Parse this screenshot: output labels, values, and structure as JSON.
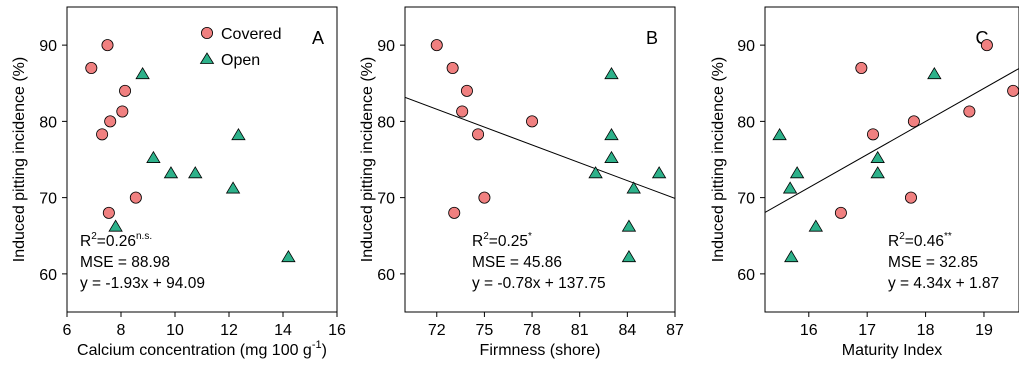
{
  "chart_data": [
    {
      "type": "scatter",
      "panel_letter": "A",
      "xlabel": "Calcium concentration (mg 100 g",
      "xlabel_sup": "-1",
      "xlabel_end": ")",
      "ylabel": "Induced pitting incidence (%)",
      "xlim": [
        6,
        16
      ],
      "ylim": [
        55,
        95
      ],
      "xticks": [
        6,
        8,
        10,
        12,
        14,
        16
      ],
      "yticks": [
        60,
        70,
        80,
        90
      ],
      "legend": {
        "position": "top-right",
        "entries": [
          {
            "name": "Covered"
          },
          {
            "name": "Open"
          }
        ]
      },
      "series": [
        {
          "name": "Covered",
          "marker": "circle",
          "color": "#f08080",
          "points": [
            [
              6.9,
              87
            ],
            [
              7.5,
              90
            ],
            [
              7.3,
              78.3
            ],
            [
              7.6,
              80
            ],
            [
              8.05,
              81.3
            ],
            [
              8.15,
              84
            ],
            [
              7.55,
              68
            ],
            [
              8.55,
              70
            ]
          ]
        },
        {
          "name": "Open",
          "marker": "triangle",
          "color": "#2db18a",
          "points": [
            [
              8.8,
              86.2
            ],
            [
              9.2,
              75.2
            ],
            [
              9.85,
              73.2
            ],
            [
              10.75,
              73.2
            ],
            [
              12.15,
              71.2
            ],
            [
              12.35,
              78.2
            ],
            [
              7.8,
              66.2
            ],
            [
              14.2,
              62.2
            ]
          ]
        }
      ],
      "fit_line": null,
      "annotations": {
        "r2_base": "R",
        "r2_sup": "2",
        "r2_value": "=0.26",
        "r2_sig": "n.s.",
        "mse": "MSE = 88.98",
        "equation": "y = -1.93x + 94.09"
      }
    },
    {
      "type": "scatter",
      "panel_letter": "B",
      "xlabel": "Firmness (shore)",
      "ylabel": "Induced pitting incidence (%)",
      "xlim": [
        70,
        87
      ],
      "ylim": [
        55,
        95
      ],
      "xticks": [
        72,
        75,
        78,
        81,
        84,
        87
      ],
      "yticks": [
        60,
        70,
        80,
        90
      ],
      "series": [
        {
          "name": "Covered",
          "marker": "circle",
          "color": "#f08080",
          "points": [
            [
              72,
              90
            ],
            [
              73,
              87
            ],
            [
              73.9,
              84
            ],
            [
              73.6,
              81.3
            ],
            [
              74.6,
              78.3
            ],
            [
              78,
              80
            ],
            [
              75,
              70
            ],
            [
              73.1,
              68
            ]
          ]
        },
        {
          "name": "Open",
          "marker": "triangle",
          "color": "#2db18a",
          "points": [
            [
              83,
              86.2
            ],
            [
              83,
              78.2
            ],
            [
              83,
              75.2
            ],
            [
              82,
              73.2
            ],
            [
              86,
              73.2
            ],
            [
              84.4,
              71.2
            ],
            [
              84.1,
              66.2
            ],
            [
              84.1,
              62.2
            ]
          ]
        }
      ],
      "fit_line": {
        "slope": -0.78,
        "intercept": 137.75,
        "x_range": [
          70,
          87
        ]
      },
      "annotations": {
        "r2_base": "R",
        "r2_sup": "2",
        "r2_value": "=0.25",
        "r2_sig": "*",
        "mse": "MSE = 45.86",
        "equation": "y = -0.78x + 137.75"
      }
    },
    {
      "type": "scatter",
      "panel_letter": "C",
      "xlabel": "Maturity Index",
      "ylabel": "Induced pitting incidence (%)",
      "xlim": [
        15.25,
        19.6
      ],
      "ylim": [
        55,
        95
      ],
      "xticks": [
        16,
        17,
        18,
        19
      ],
      "yticks": [
        60,
        70,
        80,
        90
      ],
      "series": [
        {
          "name": "Covered",
          "marker": "circle",
          "color": "#f08080",
          "points": [
            [
              16.9,
              87
            ],
            [
              19.05,
              90
            ],
            [
              19.5,
              84
            ],
            [
              17.1,
              78.3
            ],
            [
              17.8,
              80
            ],
            [
              18.75,
              81.3
            ],
            [
              16.55,
              68
            ],
            [
              17.75,
              70
            ]
          ]
        },
        {
          "name": "Open",
          "marker": "triangle",
          "color": "#2db18a",
          "points": [
            [
              15.5,
              78.2
            ],
            [
              15.8,
              73.2
            ],
            [
              15.68,
              71.2
            ],
            [
              17.18,
              75.2
            ],
            [
              17.18,
              73.2
            ],
            [
              18.15,
              86.2
            ],
            [
              16.12,
              66.2
            ],
            [
              15.7,
              62.2
            ]
          ]
        }
      ],
      "fit_line": {
        "slope": 4.34,
        "intercept": 1.87,
        "x_range": [
          15.25,
          19.6
        ]
      },
      "annotations": {
        "r2_base": "R",
        "r2_sup": "2",
        "r2_value": "=0.46",
        "r2_sig": "**",
        "mse": "MSE = 32.85",
        "equation": "y = 4.34x + 1.87"
      }
    }
  ]
}
